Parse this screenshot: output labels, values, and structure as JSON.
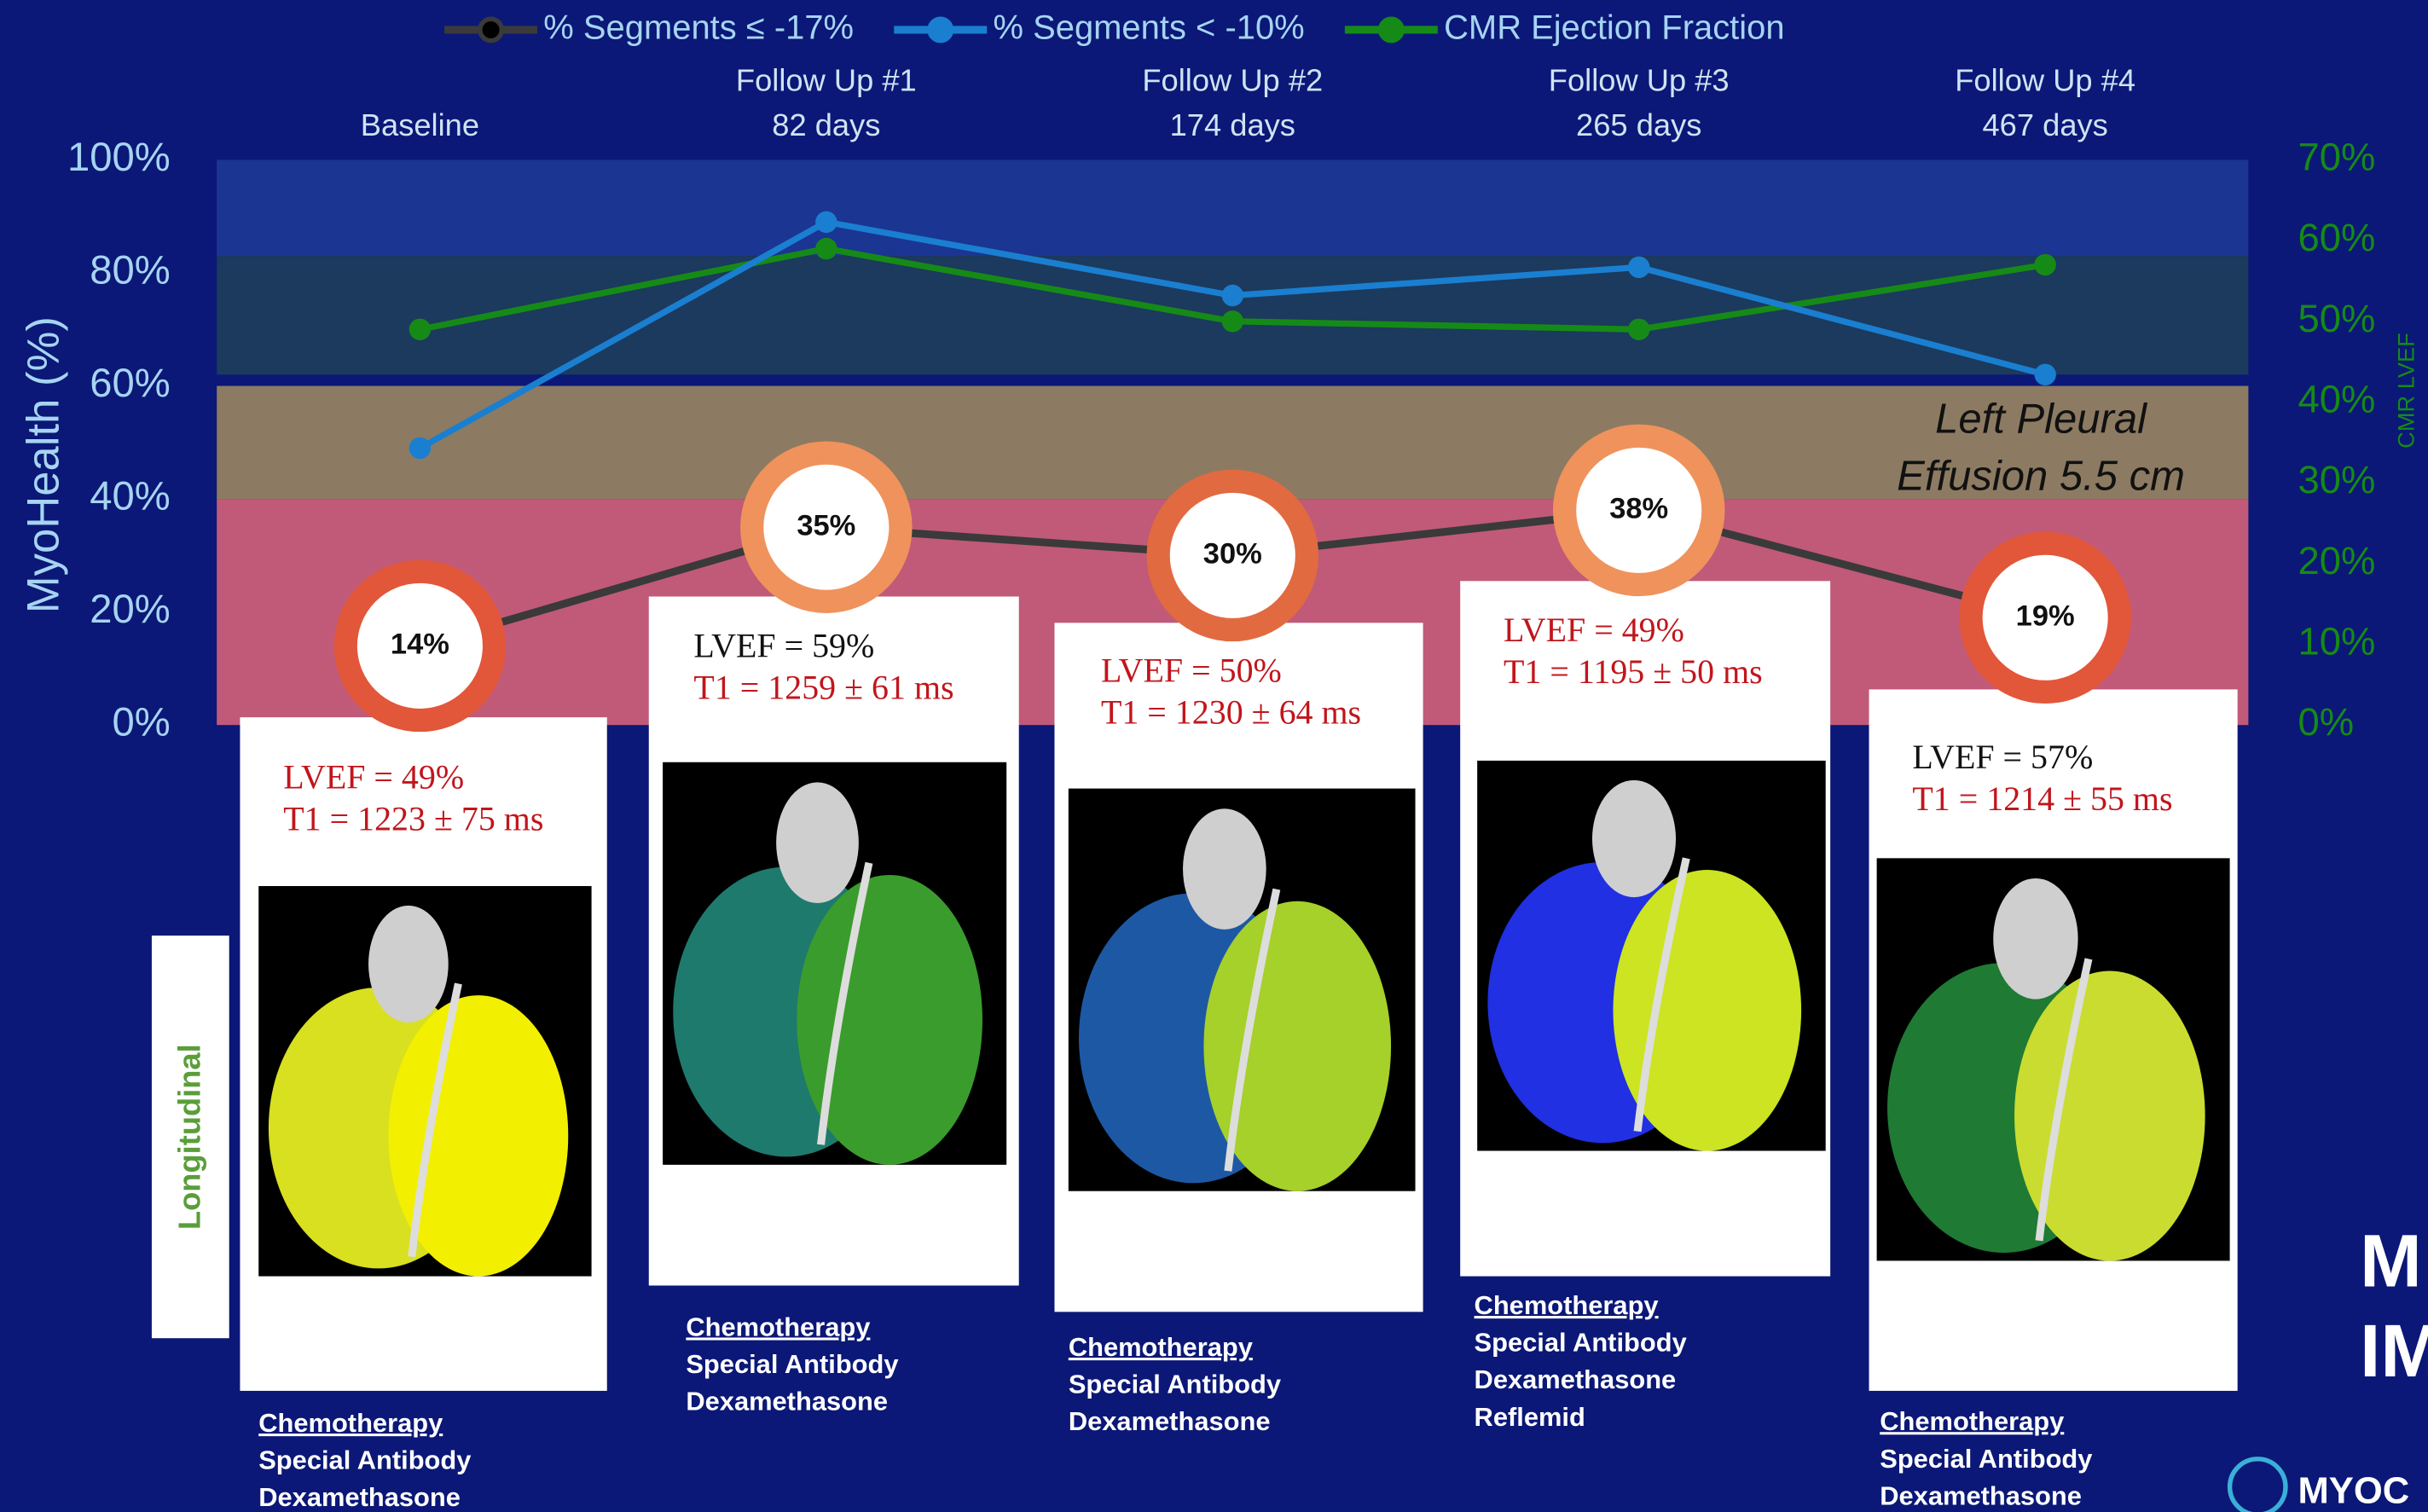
{
  "chart_data": {
    "type": "line",
    "categories": [
      "Baseline",
      "Follow Up #1",
      "Follow Up #2",
      "Follow Up #3",
      "Follow Up #4"
    ],
    "category_days": [
      null,
      "82 days",
      "174 days",
      "265 days",
      "467 days"
    ],
    "y_label": "MyoHealth (%)",
    "y2_label": "CMR LVEF",
    "ylim": [
      0,
      100
    ],
    "yticks": [
      {
        "value": 0,
        "label": "0%"
      },
      {
        "value": 20,
        "label": "20%"
      },
      {
        "value": 40,
        "label": "40%"
      },
      {
        "value": 60,
        "label": "60%"
      },
      {
        "value": 80,
        "label": "80%"
      },
      {
        "value": 100,
        "label": "100%"
      }
    ],
    "y2lim": [
      0,
      70
    ],
    "y2ticks": [
      {
        "value": 0,
        "label": "0%"
      },
      {
        "value": 10,
        "label": "10%"
      },
      {
        "value": 20,
        "label": "20%"
      },
      {
        "value": 30,
        "label": "30%"
      },
      {
        "value": 40,
        "label": "40%"
      },
      {
        "value": 50,
        "label": "50%"
      },
      {
        "value": 60,
        "label": "60%"
      },
      {
        "value": 70,
        "label": "70%"
      }
    ],
    "bands": [
      {
        "from": 83,
        "to": 100,
        "color": "#1a3592"
      },
      {
        "from": 62,
        "to": 83,
        "color": "#1b3a5e"
      },
      {
        "from": 40,
        "to": 60,
        "color": "#8c7b62"
      },
      {
        "from": 0,
        "to": 40,
        "color": "#c05a78"
      }
    ],
    "legend": "top",
    "series": [
      {
        "name": "% Segments ≤ -17%",
        "color": "#3a3a3a",
        "values": [
          14,
          35,
          30,
          38,
          19
        ],
        "value_labels": [
          "14%",
          "35%",
          "30%",
          "38%",
          "19%"
        ],
        "point_colors": [
          "#e2563a",
          "#f0925c",
          "#e26a40",
          "#f0925c",
          "#e2563a"
        ]
      },
      {
        "name": "% Segments < -10%",
        "color": "#1a7fd0",
        "values": [
          49,
          89,
          76,
          81,
          62
        ]
      },
      {
        "name": "CMR Ejection Fraction",
        "color": "#168a16",
        "axis": "y2",
        "values": [
          49,
          59,
          50,
          49,
          57
        ]
      }
    ],
    "annotation": [
      "Left Pleural",
      "Effusion 5.5 cm"
    ]
  },
  "side_label": "Longitudinal",
  "panels": [
    {
      "lvef": "LVEF = 49%",
      "t1": "T1 = 1223 ± 75 ms",
      "treatments": [
        "Chemotherapy",
        "Special Antibody",
        "Dexamethasone"
      ]
    },
    {
      "lvef": "LVEF = 59%",
      "t1": "T1 = 1259 ± 61 ms",
      "treatments": [
        "Chemotherapy",
        "Special Antibody",
        "Dexamethasone"
      ]
    },
    {
      "lvef": "LVEF = 50%",
      "t1": "T1 = 1230 ± 64 ms",
      "treatments": [
        "Chemotherapy",
        "Special Antibody",
        "Dexamethasone"
      ]
    },
    {
      "lvef": "LVEF = 49%",
      "t1": "T1 = 1195 ± 50 ms",
      "treatments": [
        "Chemotherapy",
        "Special Antibody",
        "Dexamethasone",
        "Reflemid"
      ]
    },
    {
      "lvef": "LVEF = 57%",
      "t1": "T1 = 1214 ± 55 ms",
      "treatments": [
        "Chemotherapy",
        "Special Antibody",
        "Dexamethasone"
      ]
    }
  ],
  "corner_text": [
    "M",
    "IM"
  ],
  "logo_text": "MYOC"
}
